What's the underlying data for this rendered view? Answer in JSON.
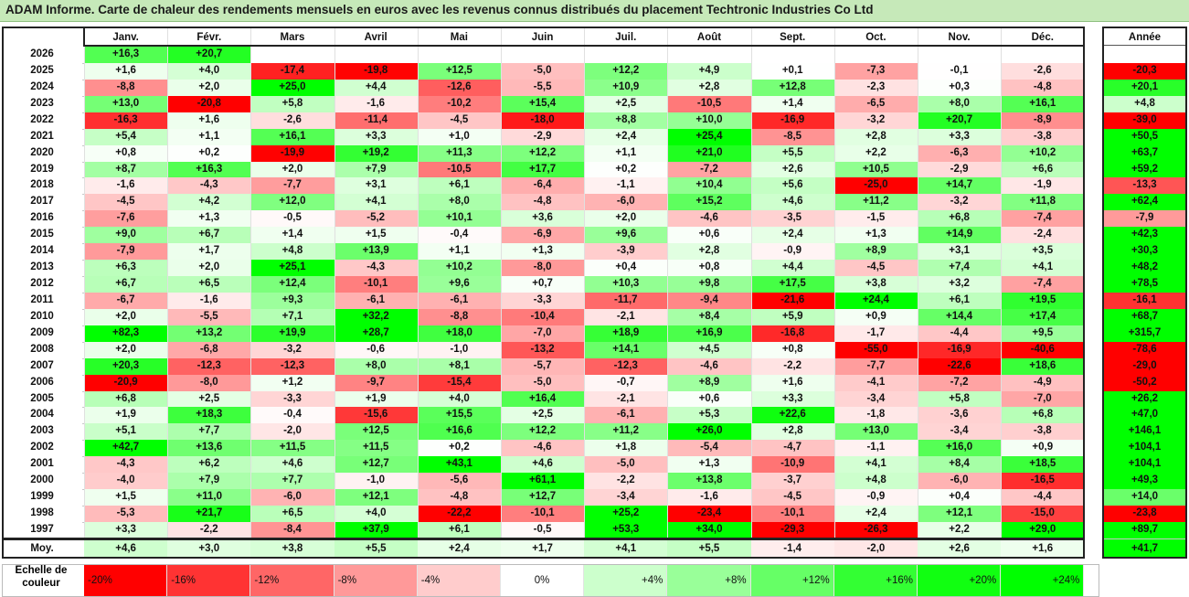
{
  "title": "ADAM Informe. Carte de chaleur des rendements mensuels en euros avec les revenus connus distribués du placement Techtronic Industries Co Ltd",
  "chart_data": {
    "type": "heatmap",
    "columns": [
      "Janv.",
      "Févr.",
      "Mars",
      "Avril",
      "Mai",
      "Juin",
      "Juil.",
      "Août",
      "Sept.",
      "Oct.",
      "Nov.",
      "Déc."
    ],
    "year_column": "Année",
    "avg_label": "Moy.",
    "rows": [
      {
        "year": "2026",
        "values": [
          "+16,3",
          "+20,7",
          "",
          "",
          "",
          "",
          "",
          "",
          "",
          "",
          "",
          ""
        ],
        "annual": ""
      },
      {
        "year": "2025",
        "values": [
          "+1,6",
          "+4,0",
          "-17,4",
          "-19,8",
          "+12,5",
          "-5,0",
          "+12,2",
          "+4,9",
          "+0,1",
          "-7,3",
          "-0,1",
          "-2,6"
        ],
        "annual": "-20,3"
      },
      {
        "year": "2024",
        "values": [
          "-8,8",
          "+2,0",
          "+25,0",
          "+4,4",
          "-12,6",
          "-5,5",
          "+10,9",
          "+2,8",
          "+12,8",
          "-2,3",
          "+0,3",
          "-4,8"
        ],
        "annual": "+20,1"
      },
      {
        "year": "2023",
        "values": [
          "+13,0",
          "-20,8",
          "+5,8",
          "-1,6",
          "-10,2",
          "+15,4",
          "+2,5",
          "-10,5",
          "+1,4",
          "-6,5",
          "+8,0",
          "+16,1"
        ],
        "annual": "+4,8"
      },
      {
        "year": "2022",
        "values": [
          "-16,3",
          "+1,6",
          "-2,6",
          "-11,4",
          "-4,5",
          "-18,0",
          "+8,8",
          "+10,0",
          "-16,9",
          "-3,2",
          "+20,7",
          "-8,9"
        ],
        "annual": "-39,0"
      },
      {
        "year": "2021",
        "values": [
          "+5,4",
          "+1,1",
          "+16,1",
          "+3,3",
          "+1,0",
          "-2,9",
          "+2,4",
          "+25,4",
          "-8,5",
          "+2,8",
          "+3,3",
          "-3,8"
        ],
        "annual": "+50,5"
      },
      {
        "year": "2020",
        "values": [
          "+0,8",
          "+0,2",
          "-19,9",
          "+19,2",
          "+11,3",
          "+12,2",
          "+1,1",
          "+21,0",
          "+5,5",
          "+2,2",
          "-6,3",
          "+10,2"
        ],
        "annual": "+63,7"
      },
      {
        "year": "2019",
        "values": [
          "+8,7",
          "+16,3",
          "+2,0",
          "+7,9",
          "-10,5",
          "+17,7",
          "+0,2",
          "-7,2",
          "+2,6",
          "+10,5",
          "-2,9",
          "+6,6"
        ],
        "annual": "+59,2"
      },
      {
        "year": "2018",
        "values": [
          "-1,6",
          "-4,3",
          "-7,7",
          "+3,1",
          "+6,1",
          "-6,4",
          "-1,1",
          "+10,4",
          "+5,6",
          "-25,0",
          "+14,7",
          "-1,9"
        ],
        "annual": "-13,3"
      },
      {
        "year": "2017",
        "values": [
          "-4,5",
          "+4,2",
          "+12,0",
          "+4,1",
          "+8,0",
          "-4,8",
          "-6,0",
          "+15,2",
          "+4,6",
          "+11,2",
          "-3,2",
          "+11,8"
        ],
        "annual": "+62,4"
      },
      {
        "year": "2016",
        "values": [
          "-7,6",
          "+1,3",
          "-0,5",
          "-5,2",
          "+10,1",
          "+3,6",
          "+2,0",
          "-4,6",
          "-3,5",
          "-1,5",
          "+6,8",
          "-7,4"
        ],
        "annual": "-7,9"
      },
      {
        "year": "2015",
        "values": [
          "+9,0",
          "+6,7",
          "+1,4",
          "+1,5",
          "-0,4",
          "-6,9",
          "+9,6",
          "+0,6",
          "+2,4",
          "+1,3",
          "+14,9",
          "-2,4"
        ],
        "annual": "+42,3"
      },
      {
        "year": "2014",
        "values": [
          "-7,9",
          "+1,7",
          "+4,8",
          "+13,9",
          "+1,1",
          "+1,3",
          "-3,9",
          "+2,8",
          "-0,9",
          "+8,9",
          "+3,1",
          "+3,5"
        ],
        "annual": "+30,3"
      },
      {
        "year": "2013",
        "values": [
          "+6,3",
          "+2,0",
          "+25,1",
          "-4,3",
          "+10,2",
          "-8,0",
          "+0,4",
          "+0,8",
          "+4,4",
          "-4,5",
          "+7,4",
          "+4,1"
        ],
        "annual": "+48,2"
      },
      {
        "year": "2012",
        "values": [
          "+6,7",
          "+6,5",
          "+12,4",
          "-10,1",
          "+9,6",
          "+0,7",
          "+10,3",
          "+9,8",
          "+17,5",
          "+3,8",
          "+3,2",
          "-7,4"
        ],
        "annual": "+78,5"
      },
      {
        "year": "2011",
        "values": [
          "-6,7",
          "-1,6",
          "+9,3",
          "-6,1",
          "-6,1",
          "-3,3",
          "-11,7",
          "-9,4",
          "-21,6",
          "+24,4",
          "+6,1",
          "+19,5"
        ],
        "annual": "-16,1"
      },
      {
        "year": "2010",
        "values": [
          "+2,0",
          "-5,5",
          "+7,1",
          "+32,2",
          "-8,8",
          "-10,4",
          "-2,1",
          "+8,4",
          "+5,9",
          "+0,9",
          "+14,4",
          "+17,4"
        ],
        "annual": "+68,7"
      },
      {
        "year": "2009",
        "values": [
          "+82,3",
          "+13,2",
          "+19,9",
          "+28,7",
          "+18,0",
          "-7,0",
          "+18,9",
          "+16,9",
          "-16,8",
          "-1,7",
          "-4,4",
          "+9,5"
        ],
        "annual": "+315,7"
      },
      {
        "year": "2008",
        "values": [
          "+2,0",
          "-6,8",
          "-3,2",
          "-0,6",
          "-1,0",
          "-13,2",
          "+14,1",
          "+4,5",
          "+0,8",
          "-55,0",
          "-16,9",
          "-40,6"
        ],
        "annual": "-78,6"
      },
      {
        "year": "2007",
        "values": [
          "+20,3",
          "-12,3",
          "-12,3",
          "+8,0",
          "+8,1",
          "-5,7",
          "-12,3",
          "-4,6",
          "-2,2",
          "-7,7",
          "-22,6",
          "+18,6"
        ],
        "annual": "-29,0"
      },
      {
        "year": "2006",
        "values": [
          "-20,9",
          "-8,0",
          "+1,2",
          "-9,7",
          "-15,4",
          "-5,0",
          "-0,7",
          "+8,9",
          "+1,6",
          "-4,1",
          "-7,2",
          "-4,9"
        ],
        "annual": "-50,2"
      },
      {
        "year": "2005",
        "values": [
          "+6,8",
          "+2,5",
          "-3,3",
          "+1,9",
          "+4,0",
          "+16,4",
          "-2,1",
          "+0,6",
          "+3,3",
          "-3,4",
          "+5,8",
          "-7,0"
        ],
        "annual": "+26,2"
      },
      {
        "year": "2004",
        "values": [
          "+1,9",
          "+18,3",
          "-0,4",
          "-15,6",
          "+15,5",
          "+2,5",
          "-6,1",
          "+5,3",
          "+22,6",
          "-1,8",
          "-3,6",
          "+6,8"
        ],
        "annual": "+47,0"
      },
      {
        "year": "2003",
        "values": [
          "+5,1",
          "+7,7",
          "-2,0",
          "+12,5",
          "+16,6",
          "+12,2",
          "+11,2",
          "+26,0",
          "+2,8",
          "+13,0",
          "-3,4",
          "-3,8"
        ],
        "annual": "+146,1"
      },
      {
        "year": "2002",
        "values": [
          "+42,7",
          "+13,6",
          "+11,5",
          "+11,5",
          "+0,2",
          "-4,6",
          "+1,8",
          "-5,4",
          "-4,7",
          "-1,1",
          "+16,0",
          "+0,9"
        ],
        "annual": "+104,1"
      },
      {
        "year": "2001",
        "values": [
          "-4,3",
          "+6,2",
          "+4,6",
          "+12,7",
          "+43,1",
          "+4,6",
          "-5,0",
          "+1,3",
          "-10,9",
          "+4,1",
          "+8,4",
          "+18,5"
        ],
        "annual": "+104,1"
      },
      {
        "year": "2000",
        "values": [
          "-4,0",
          "+7,9",
          "+7,7",
          "-1,0",
          "-5,6",
          "+61,1",
          "-2,2",
          "+13,8",
          "-3,7",
          "+4,8",
          "-6,0",
          "-16,5"
        ],
        "annual": "+49,3"
      },
      {
        "year": "1999",
        "values": [
          "+1,5",
          "+11,0",
          "-6,0",
          "+12,1",
          "-4,8",
          "+12,7",
          "-3,4",
          "-1,6",
          "-4,5",
          "-0,9",
          "+0,4",
          "-4,4"
        ],
        "annual": "+14,0"
      },
      {
        "year": "1998",
        "values": [
          "-5,3",
          "+21,7",
          "+6,5",
          "+4,0",
          "-22,2",
          "-10,1",
          "+25,2",
          "-23,4",
          "-10,1",
          "+2,4",
          "+12,1",
          "-15,0"
        ],
        "annual": "-23,8"
      },
      {
        "year": "1997",
        "values": [
          "+3,3",
          "-2,2",
          "-8,4",
          "+37,9",
          "+6,1",
          "-0,5",
          "+53,3",
          "+34,0",
          "-29,3",
          "-26,3",
          "+2,2",
          "+29,0"
        ],
        "annual": "+89,7"
      }
    ],
    "averages": [
      "+4,6",
      "+3,0",
      "+3,8",
      "+5,5",
      "+2,4",
      "+1,7",
      "+4,1",
      "+5,5",
      "-1,4",
      "-2,0",
      "+2,6",
      "+1,6"
    ],
    "average_annual": "+41,7",
    "color_scale": {
      "label": "Echelle de couleur",
      "steps": [
        {
          "label": "-20%",
          "value": -20,
          "color": "#ff0000"
        },
        {
          "label": "-16%",
          "value": -16,
          "color": "#ff3333"
        },
        {
          "label": "-12%",
          "value": -12,
          "color": "#ff6666"
        },
        {
          "label": "-8%",
          "value": -8,
          "color": "#ff9999"
        },
        {
          "label": "-4%",
          "value": -4,
          "color": "#ffcccc"
        },
        {
          "label": "0%",
          "value": 0,
          "color": "#ffffff"
        },
        {
          "label": "+4%",
          "value": 4,
          "color": "#ccffcc"
        },
        {
          "label": "+8%",
          "value": 8,
          "color": "#99ff99"
        },
        {
          "label": "+12%",
          "value": 12,
          "color": "#66ff66"
        },
        {
          "label": "+16%",
          "value": 16,
          "color": "#33ff33"
        },
        {
          "label": "+20%",
          "value": 20,
          "color": "#11ff11"
        },
        {
          "label": "+24%",
          "value": 24,
          "color": "#00ff00"
        }
      ]
    }
  }
}
